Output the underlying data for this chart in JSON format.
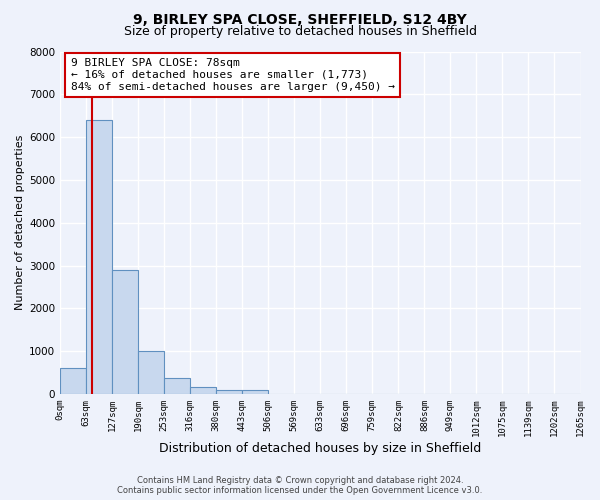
{
  "title": "9, BIRLEY SPA CLOSE, SHEFFIELD, S12 4BY",
  "subtitle": "Size of property relative to detached houses in Sheffield",
  "xlabel": "Distribution of detached houses by size in Sheffield",
  "ylabel": "Number of detached properties",
  "bar_values": [
    600,
    6400,
    2900,
    1000,
    380,
    170,
    100,
    100,
    0,
    0,
    0,
    0,
    0,
    0,
    0,
    0,
    0,
    0,
    0,
    0
  ],
  "bar_color": "#c8d8ee",
  "bar_edge_color": "#6090c0",
  "tick_labels": [
    "0sqm",
    "63sqm",
    "127sqm",
    "190sqm",
    "253sqm",
    "316sqm",
    "380sqm",
    "443sqm",
    "506sqm",
    "569sqm",
    "633sqm",
    "696sqm",
    "759sqm",
    "822sqm",
    "886sqm",
    "949sqm",
    "1012sqm",
    "1075sqm",
    "1139sqm",
    "1202sqm",
    "1265sqm"
  ],
  "ylim": [
    0,
    8000
  ],
  "yticks": [
    0,
    1000,
    2000,
    3000,
    4000,
    5000,
    6000,
    7000,
    8000
  ],
  "property_size": 78,
  "bin_width": 63,
  "vline_color": "#cc0000",
  "annotation_text": "9 BIRLEY SPA CLOSE: 78sqm\n← 16% of detached houses are smaller (1,773)\n84% of semi-detached houses are larger (9,450) →",
  "annotation_box_color": "#ffffff",
  "annotation_border_color": "#cc0000",
  "footer_line1": "Contains HM Land Registry data © Crown copyright and database right 2024.",
  "footer_line2": "Contains public sector information licensed under the Open Government Licence v3.0.",
  "background_color": "#eef2fb",
  "grid_color": "#ffffff",
  "title_fontsize": 10,
  "subtitle_fontsize": 9,
  "annotation_fontsize": 8,
  "label_fontsize": 8,
  "tick_fontsize": 6.5,
  "ylabel_fontsize": 8
}
